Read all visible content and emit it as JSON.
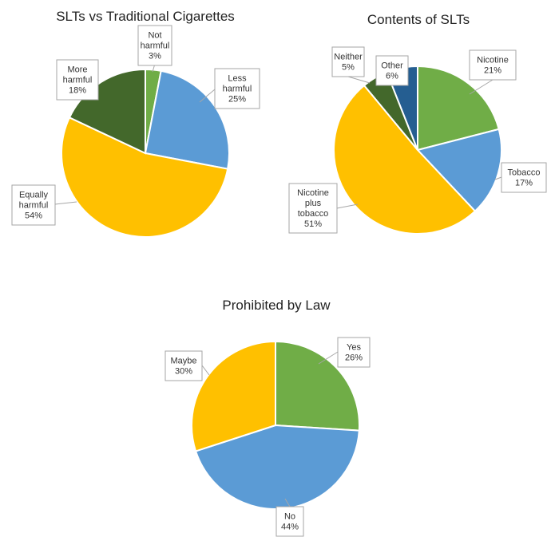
{
  "chart_data": [
    {
      "type": "pie",
      "title": "SLTs vs Traditional Cigarettes",
      "slices": [
        {
          "label_lines": [
            "Not",
            "harmful"
          ],
          "value": 3,
          "value_label": "3%",
          "color": "#70ad47"
        },
        {
          "label_lines": [
            "Less",
            "harmful"
          ],
          "value": 25,
          "value_label": "25%",
          "color": "#5b9bd5"
        },
        {
          "label_lines": [
            "Equally",
            "harmful"
          ],
          "value": 54,
          "value_label": "54%",
          "color": "#ffc000"
        },
        {
          "label_lines": [
            "More",
            "harmful"
          ],
          "value": 18,
          "value_label": "18%",
          "color": "#43682b"
        }
      ]
    },
    {
      "type": "pie",
      "title": "Contents of SLTs",
      "slices": [
        {
          "label_lines": [
            "Nicotine"
          ],
          "value": 21,
          "value_label": "21%",
          "color": "#70ad47"
        },
        {
          "label_lines": [
            "Tobacco"
          ],
          "value": 17,
          "value_label": "17%",
          "color": "#5b9bd5"
        },
        {
          "label_lines": [
            "Nicotine",
            "plus",
            "tobacco"
          ],
          "value": 51,
          "value_label": "51%",
          "color": "#ffc000"
        },
        {
          "label_lines": [
            "Neither"
          ],
          "value": 5,
          "value_label": "5%",
          "color": "#43682b"
        },
        {
          "label_lines": [
            "Other"
          ],
          "value": 6,
          "value_label": "6%",
          "color": "#255e91"
        }
      ]
    },
    {
      "type": "pie",
      "title": "Prohibited by Law",
      "slices": [
        {
          "label_lines": [
            "Yes"
          ],
          "value": 26,
          "value_label": "26%",
          "color": "#70ad47"
        },
        {
          "label_lines": [
            "No"
          ],
          "value": 44,
          "value_label": "44%",
          "color": "#5b9bd5"
        },
        {
          "label_lines": [
            "Maybe"
          ],
          "value": 30,
          "value_label": "30%",
          "color": "#ffc000"
        }
      ]
    }
  ]
}
